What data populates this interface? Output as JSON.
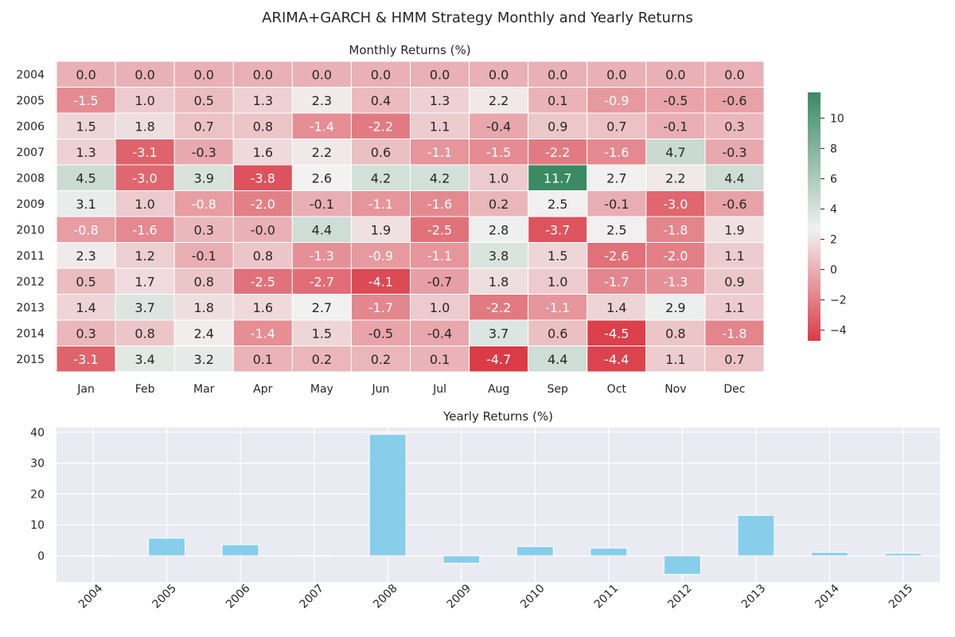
{
  "suptitle": "ARIMA+GARCH & HMM Strategy Monthly and Yearly Returns",
  "chart_data": [
    {
      "type": "heatmap",
      "title": "Monthly Returns (%)",
      "rows": [
        "2004",
        "2005",
        "2006",
        "2007",
        "2008",
        "2009",
        "2010",
        "2011",
        "2012",
        "2013",
        "2014",
        "2015"
      ],
      "columns": [
        "Jan",
        "Feb",
        "Mar",
        "Apr",
        "May",
        "Jun",
        "Jul",
        "Aug",
        "Sep",
        "Oct",
        "Nov",
        "Dec"
      ],
      "values": [
        [
          "0.0",
          "0.0",
          "0.0",
          "0.0",
          "0.0",
          "0.0",
          "0.0",
          "0.0",
          "0.0",
          "0.0",
          "0.0",
          "0.0"
        ],
        [
          "-1.5",
          "1.0",
          "0.5",
          "1.3",
          "2.3",
          "0.4",
          "1.3",
          "2.2",
          "0.1",
          "-0.9",
          "-0.5",
          "-0.6"
        ],
        [
          "1.5",
          "1.8",
          "0.7",
          "0.8",
          "-1.4",
          "-2.2",
          "1.1",
          "-0.4",
          "0.9",
          "0.7",
          "-0.1",
          "0.3"
        ],
        [
          "1.3",
          "-3.1",
          "-0.3",
          "1.6",
          "2.2",
          "0.6",
          "-1.1",
          "-1.5",
          "-2.2",
          "-1.6",
          "4.7",
          "-0.3"
        ],
        [
          "4.5",
          "-3.0",
          "3.9",
          "-3.8",
          "2.6",
          "4.2",
          "4.2",
          "1.0",
          "11.7",
          "2.7",
          "2.2",
          "4.4"
        ],
        [
          "3.1",
          "1.0",
          "-0.8",
          "-2.0",
          "-0.1",
          "-1.1",
          "-1.6",
          "0.2",
          "2.5",
          "-0.1",
          "-3.0",
          "-0.6"
        ],
        [
          "-0.8",
          "-1.6",
          "0.3",
          "-0.0",
          "4.4",
          "1.9",
          "-2.5",
          "2.8",
          "-3.7",
          "2.5",
          "-1.8",
          "1.9"
        ],
        [
          "2.3",
          "1.2",
          "-0.1",
          "0.8",
          "-1.3",
          "-0.9",
          "-1.1",
          "3.8",
          "1.5",
          "-2.6",
          "-2.0",
          "1.1"
        ],
        [
          "0.5",
          "1.7",
          "0.8",
          "-2.5",
          "-2.7",
          "-4.1",
          "-0.7",
          "1.8",
          "1.0",
          "-1.7",
          "-1.3",
          "0.9"
        ],
        [
          "1.4",
          "3.7",
          "1.8",
          "1.6",
          "2.7",
          "-1.7",
          "1.0",
          "-2.2",
          "-1.1",
          "1.4",
          "2.9",
          "1.1"
        ],
        [
          "0.3",
          "0.8",
          "2.4",
          "-1.4",
          "1.5",
          "-0.5",
          "-0.4",
          "3.7",
          "0.6",
          "-4.5",
          "0.8",
          "-1.8"
        ],
        [
          "-3.1",
          "3.4",
          "3.2",
          "0.1",
          "0.2",
          "0.2",
          "0.1",
          "-4.7",
          "4.4",
          "-4.4",
          "1.1",
          "0.7"
        ]
      ],
      "colorbar": {
        "min": -4.7,
        "max": 11.7,
        "ticks": [
          -4,
          -2,
          0,
          2,
          4,
          6,
          8,
          10
        ],
        "tick_labels": [
          "−4",
          "−2",
          "0",
          "2",
          "4",
          "6",
          "8",
          "10"
        ],
        "colors": {
          "low": "#da3b47",
          "mid": "#f2f2f2",
          "high": "#3a8a63"
        }
      }
    },
    {
      "type": "bar",
      "title": "Yearly Returns (%)",
      "categories": [
        "2004",
        "2005",
        "2006",
        "2007",
        "2008",
        "2009",
        "2010",
        "2011",
        "2012",
        "2013",
        "2014",
        "2015"
      ],
      "values": [
        0.0,
        5.7,
        3.6,
        0.0,
        39.3,
        -2.4,
        3.0,
        2.5,
        -6.0,
        13.1,
        1.1,
        0.8
      ],
      "ylim": [
        -8.5,
        41.5
      ],
      "yticks": [
        0,
        10,
        20,
        30,
        40
      ],
      "bar_color": "#87ceeb",
      "grid": true,
      "background": "#eaeaf2"
    }
  ]
}
